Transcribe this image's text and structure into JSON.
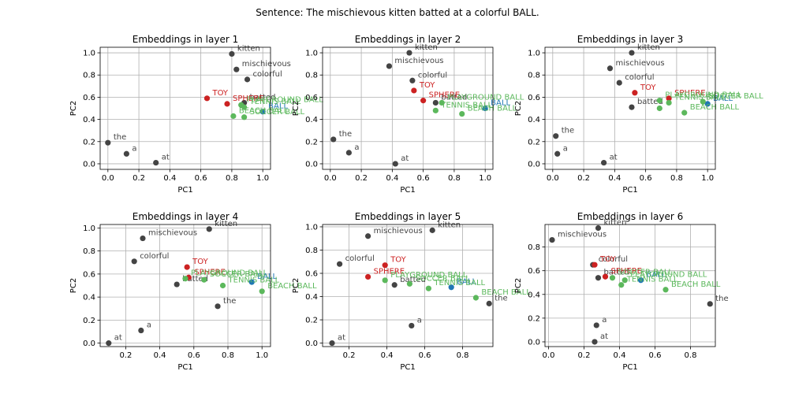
{
  "suptitle": "Sentence: The mischievous kitten batted at a colorful BALL.",
  "colors": {
    "sentence": "#444444",
    "target": "#1f77b4",
    "ball_context": "#5cb85c",
    "other_context": "#cc2222"
  },
  "chart_data": [
    {
      "type": "scatter",
      "title": "Embeddings in layer 1",
      "xlabel": "PC1",
      "ylabel": "PC2",
      "xlim": [
        -0.05,
        1.05
      ],
      "ylim": [
        -0.05,
        1.05
      ],
      "xticks": [
        "0.0",
        "0.2",
        "0.4",
        "0.6",
        "0.8",
        "1.0"
      ],
      "xtick_values": [
        0,
        0.2,
        0.4,
        0.6,
        0.8,
        1.0
      ],
      "yticks": [
        "0.0",
        "0.2",
        "0.4",
        "0.6",
        "0.8",
        "1.0"
      ],
      "ytick_values": [
        0,
        0.2,
        0.4,
        0.6,
        0.8,
        1.0
      ],
      "grid": true,
      "points": [
        {
          "label": "the",
          "x": 0.0,
          "y": 0.19,
          "group": "sentence"
        },
        {
          "label": "mischievous",
          "x": 0.83,
          "y": 0.85,
          "group": "sentence"
        },
        {
          "label": "kitten",
          "x": 0.8,
          "y": 0.99,
          "group": "sentence"
        },
        {
          "label": "batted",
          "x": 0.88,
          "y": 0.55,
          "group": "sentence"
        },
        {
          "label": "at",
          "x": 0.31,
          "y": 0.01,
          "group": "sentence"
        },
        {
          "label": "a",
          "x": 0.12,
          "y": 0.09,
          "group": "sentence"
        },
        {
          "label": "colorful",
          "x": 0.9,
          "y": 0.76,
          "group": "sentence"
        },
        {
          "label": "BALL",
          "x": 1.0,
          "y": 0.47,
          "group": "target"
        },
        {
          "label": "TOY",
          "x": 0.64,
          "y": 0.59,
          "group": "other_context"
        },
        {
          "label": "SPHERE",
          "x": 0.77,
          "y": 0.54,
          "group": "other_context"
        },
        {
          "label": "PLAYGROUND BALL",
          "x": 0.86,
          "y": 0.53,
          "group": "ball_context"
        },
        {
          "label": "TENNIS BALL",
          "x": 0.88,
          "y": 0.51,
          "group": "ball_context"
        },
        {
          "label": "BEACH BALL",
          "x": 0.81,
          "y": 0.43,
          "group": "ball_context"
        },
        {
          "label": "SOCCER BALL",
          "x": 0.88,
          "y": 0.42,
          "group": "ball_context"
        }
      ]
    },
    {
      "type": "scatter",
      "title": "Embeddings in layer 2",
      "xlabel": "PC1",
      "ylabel": "PC2",
      "xlim": [
        -0.05,
        1.05
      ],
      "ylim": [
        -0.05,
        1.05
      ],
      "xticks": [
        "0.0",
        "0.2",
        "0.4",
        "0.6",
        "0.8",
        "1.0"
      ],
      "xtick_values": [
        0,
        0.2,
        0.4,
        0.6,
        0.8,
        1.0
      ],
      "yticks": [
        "0.0",
        "0.2",
        "0.4",
        "0.6",
        "0.8",
        "1.0"
      ],
      "ytick_values": [
        0,
        0.2,
        0.4,
        0.6,
        0.8,
        1.0
      ],
      "grid": true,
      "points": [
        {
          "label": "the",
          "x": 0.02,
          "y": 0.22,
          "group": "sentence"
        },
        {
          "label": "mischievous",
          "x": 0.38,
          "y": 0.88,
          "group": "sentence"
        },
        {
          "label": "kitten",
          "x": 0.51,
          "y": 1.0,
          "group": "sentence"
        },
        {
          "label": "batted",
          "x": 0.68,
          "y": 0.55,
          "group": "sentence"
        },
        {
          "label": "at",
          "x": 0.42,
          "y": 0.0,
          "group": "sentence"
        },
        {
          "label": "a",
          "x": 0.12,
          "y": 0.1,
          "group": "sentence"
        },
        {
          "label": "colorful",
          "x": 0.53,
          "y": 0.75,
          "group": "sentence"
        },
        {
          "label": "BALL",
          "x": 1.0,
          "y": 0.5,
          "group": "target"
        },
        {
          "label": "TOY",
          "x": 0.54,
          "y": 0.66,
          "group": "other_context"
        },
        {
          "label": "SPHERE",
          "x": 0.6,
          "y": 0.57,
          "group": "other_context"
        },
        {
          "label": "PLAYGROUND BALL",
          "x": 0.72,
          "y": 0.55,
          "group": "ball_context"
        },
        {
          "label": "TENNIS BALL",
          "x": 0.68,
          "y": 0.48,
          "group": "ball_context"
        },
        {
          "label": "BEACH BALL",
          "x": 0.85,
          "y": 0.45,
          "group": "ball_context"
        }
      ]
    },
    {
      "type": "scatter",
      "title": "Embeddings in layer 3",
      "xlabel": "PC1",
      "ylabel": "PC2",
      "xlim": [
        -0.05,
        1.05
      ],
      "ylim": [
        -0.05,
        1.05
      ],
      "xticks": [
        "0.0",
        "0.2",
        "0.4",
        "0.6",
        "0.8",
        "1.0"
      ],
      "xtick_values": [
        0,
        0.2,
        0.4,
        0.6,
        0.8,
        1.0
      ],
      "yticks": [
        "0.0",
        "0.2",
        "0.4",
        "0.6",
        "0.8",
        "1.0"
      ],
      "ytick_values": [
        0,
        0.2,
        0.4,
        0.6,
        0.8,
        1.0
      ],
      "grid": true,
      "points": [
        {
          "label": "the",
          "x": 0.02,
          "y": 0.25,
          "group": "sentence"
        },
        {
          "label": "mischievous",
          "x": 0.37,
          "y": 0.86,
          "group": "sentence"
        },
        {
          "label": "kitten",
          "x": 0.51,
          "y": 1.0,
          "group": "sentence"
        },
        {
          "label": "batted",
          "x": 0.51,
          "y": 0.51,
          "group": "sentence"
        },
        {
          "label": "at",
          "x": 0.33,
          "y": 0.01,
          "group": "sentence"
        },
        {
          "label": "a",
          "x": 0.03,
          "y": 0.09,
          "group": "sentence"
        },
        {
          "label": "colorful",
          "x": 0.43,
          "y": 0.73,
          "group": "sentence"
        },
        {
          "label": "BALL",
          "x": 1.0,
          "y": 0.54,
          "group": "target"
        },
        {
          "label": "TOY",
          "x": 0.53,
          "y": 0.64,
          "group": "other_context"
        },
        {
          "label": "SPHERE",
          "x": 0.75,
          "y": 0.59,
          "group": "other_context"
        },
        {
          "label": "PLAYGROUND BALL",
          "x": 0.69,
          "y": 0.57,
          "group": "ball_context"
        },
        {
          "label": "TENNIS BALL",
          "x": 0.75,
          "y": 0.55,
          "group": "ball_context"
        },
        {
          "label": "SOCCER BALL",
          "x": 0.97,
          "y": 0.56,
          "group": "ball_context"
        },
        {
          "label": "BEACH BALL",
          "x": 0.85,
          "y": 0.46,
          "group": "ball_context"
        },
        {
          "label": "",
          "x": 0.69,
          "y": 0.5,
          "group": "ball_context"
        }
      ]
    },
    {
      "type": "scatter",
      "title": "Embeddings in layer 4",
      "xlabel": "PC1",
      "ylabel": "PC2",
      "xlim": [
        0.05,
        1.05
      ],
      "ylim": [
        -0.03,
        1.03
      ],
      "xticks": [
        "0.2",
        "0.4",
        "0.6",
        "0.8",
        "1.0"
      ],
      "xtick_values": [
        0.2,
        0.4,
        0.6,
        0.8,
        1.0
      ],
      "yticks": [
        "0.0",
        "0.2",
        "0.4",
        "0.6",
        "0.8",
        "1.0"
      ],
      "ytick_values": [
        0,
        0.2,
        0.4,
        0.6,
        0.8,
        1.0
      ],
      "grid": true,
      "points": [
        {
          "label": "the",
          "x": 0.74,
          "y": 0.32,
          "group": "sentence"
        },
        {
          "label": "mischievous",
          "x": 0.3,
          "y": 0.91,
          "group": "sentence"
        },
        {
          "label": "kitten",
          "x": 0.69,
          "y": 0.99,
          "group": "sentence"
        },
        {
          "label": "batted",
          "x": 0.5,
          "y": 0.51,
          "group": "sentence"
        },
        {
          "label": "at",
          "x": 0.1,
          "y": 0.0,
          "group": "sentence"
        },
        {
          "label": "a",
          "x": 0.29,
          "y": 0.11,
          "group": "sentence"
        },
        {
          "label": "colorful",
          "x": 0.25,
          "y": 0.71,
          "group": "sentence"
        },
        {
          "label": "BALL",
          "x": 0.94,
          "y": 0.53,
          "group": "target"
        },
        {
          "label": "TOY",
          "x": 0.56,
          "y": 0.66,
          "group": "other_context"
        },
        {
          "label": "SPHERE",
          "x": 0.57,
          "y": 0.57,
          "group": "other_context"
        },
        {
          "label": "PLAYGROUND BALL",
          "x": 0.55,
          "y": 0.56,
          "group": "ball_context"
        },
        {
          "label": "SOCCER BALL",
          "x": 0.66,
          "y": 0.55,
          "group": "ball_context"
        },
        {
          "label": "TENNIS BALL",
          "x": 0.77,
          "y": 0.5,
          "group": "ball_context"
        },
        {
          "label": "BEACH BALL",
          "x": 1.0,
          "y": 0.45,
          "group": "ball_context"
        }
      ]
    },
    {
      "type": "scatter",
      "title": "Embeddings in layer 5",
      "xlabel": "PC1",
      "ylabel": "PC2",
      "xlim": [
        0.06,
        0.96
      ],
      "ylim": [
        -0.03,
        1.02
      ],
      "xticks": [
        "0.2",
        "0.4",
        "0.6",
        "0.8"
      ],
      "xtick_values": [
        0.2,
        0.4,
        0.6,
        0.8
      ],
      "yticks": [
        "0.0",
        "0.2",
        "0.4",
        "0.6",
        "0.8",
        "1.0"
      ],
      "ytick_values": [
        0,
        0.2,
        0.4,
        0.6,
        0.8,
        1.0
      ],
      "grid": true,
      "points": [
        {
          "label": "the",
          "x": 0.94,
          "y": 0.34,
          "group": "sentence"
        },
        {
          "label": "mischievous",
          "x": 0.3,
          "y": 0.92,
          "group": "sentence"
        },
        {
          "label": "kitten",
          "x": 0.64,
          "y": 0.97,
          "group": "sentence"
        },
        {
          "label": "batted",
          "x": 0.44,
          "y": 0.5,
          "group": "sentence"
        },
        {
          "label": "at",
          "x": 0.11,
          "y": 0.0,
          "group": "sentence"
        },
        {
          "label": "a",
          "x": 0.53,
          "y": 0.15,
          "group": "sentence"
        },
        {
          "label": "colorful",
          "x": 0.15,
          "y": 0.68,
          "group": "sentence"
        },
        {
          "label": "BALL",
          "x": 0.74,
          "y": 0.48,
          "group": "target"
        },
        {
          "label": "TOY",
          "x": 0.39,
          "y": 0.67,
          "group": "other_context"
        },
        {
          "label": "SPHERE",
          "x": 0.3,
          "y": 0.57,
          "group": "other_context"
        },
        {
          "label": "PLAYGROUND BALL",
          "x": 0.39,
          "y": 0.54,
          "group": "ball_context"
        },
        {
          "label": "SOCCER BALL",
          "x": 0.52,
          "y": 0.51,
          "group": "ball_context"
        },
        {
          "label": "TENNIS BALL",
          "x": 0.62,
          "y": 0.47,
          "group": "ball_context"
        },
        {
          "label": "BEACH BALL",
          "x": 0.87,
          "y": 0.39,
          "group": "ball_context"
        }
      ]
    },
    {
      "type": "scatter",
      "title": "Embeddings in layer 6",
      "xlabel": "PC1",
      "ylabel": "PC2",
      "xlim": [
        -0.02,
        0.94
      ],
      "ylim": [
        -0.04,
        0.99
      ],
      "xticks": [
        "0.0",
        "0.2",
        "0.4",
        "0.6",
        "0.8"
      ],
      "xtick_values": [
        0,
        0.2,
        0.4,
        0.6,
        0.8
      ],
      "yticks": [
        "0.0",
        "0.2",
        "0.4",
        "0.6",
        "0.8"
      ],
      "ytick_values": [
        0,
        0.2,
        0.4,
        0.6,
        0.8
      ],
      "grid": true,
      "points": [
        {
          "label": "the",
          "x": 0.91,
          "y": 0.32,
          "group": "sentence"
        },
        {
          "label": "mischievous",
          "x": 0.02,
          "y": 0.86,
          "group": "sentence"
        },
        {
          "label": "kitten",
          "x": 0.28,
          "y": 0.96,
          "group": "sentence"
        },
        {
          "label": "batted",
          "x": 0.28,
          "y": 0.54,
          "group": "sentence"
        },
        {
          "label": "at",
          "x": 0.26,
          "y": 0.0,
          "group": "sentence"
        },
        {
          "label": "a",
          "x": 0.27,
          "y": 0.14,
          "group": "sentence"
        },
        {
          "label": "colorful",
          "x": 0.25,
          "y": 0.65,
          "group": "sentence"
        },
        {
          "label": "BALL",
          "x": 0.52,
          "y": 0.52,
          "group": "target"
        },
        {
          "label": "TOY",
          "x": 0.26,
          "y": 0.65,
          "group": "other_context"
        },
        {
          "label": "SPHERE",
          "x": 0.32,
          "y": 0.55,
          "group": "other_context"
        },
        {
          "label": "PLAYGROUND BALL",
          "x": 0.43,
          "y": 0.52,
          "group": "ball_context"
        },
        {
          "label": "SOCCER BALL",
          "x": 0.36,
          "y": 0.54,
          "group": "ball_context"
        },
        {
          "label": "TENNIS BALL",
          "x": 0.41,
          "y": 0.48,
          "group": "ball_context"
        },
        {
          "label": "BEACH BALL",
          "x": 0.66,
          "y": 0.44,
          "group": "ball_context"
        }
      ]
    }
  ]
}
